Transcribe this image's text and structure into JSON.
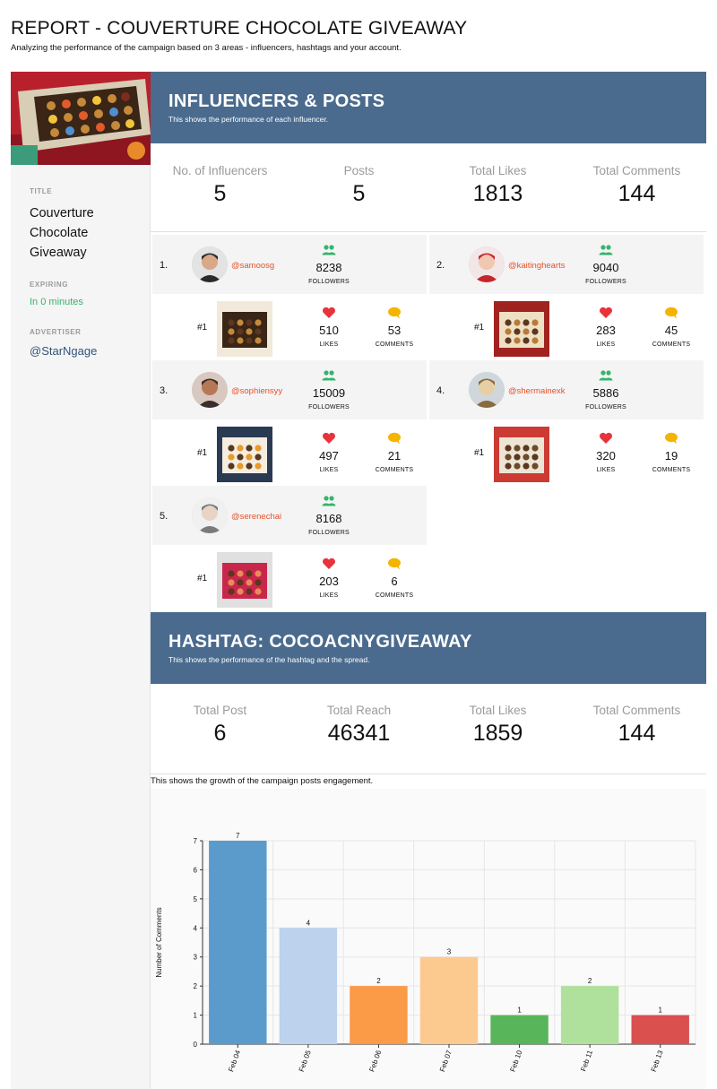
{
  "report": {
    "title": "REPORT - COUVERTURE CHOCOLATE GIVEAWAY",
    "subtitle": "Analyzing the performance of the campaign based on 3 areas - influencers, hashtags and your account."
  },
  "sidebar": {
    "title_label": "TITLE",
    "title_value": "Couverture Chocolate Giveaway",
    "expiring_label": "EXPIRING",
    "expiring_value": "In 0 minutes",
    "advertiser_label": "ADVERTISER",
    "advertiser_value": "@StarNgage"
  },
  "influencers_section": {
    "title": "INFLUENCERS & POSTS",
    "subtitle": "This shows the performance of each influencer.",
    "stats": [
      {
        "label": "No. of Influencers",
        "value": "5"
      },
      {
        "label": "Posts",
        "value": "5"
      },
      {
        "label": "Total Likes",
        "value": "1813"
      },
      {
        "label": "Total Comments",
        "value": "144"
      }
    ],
    "metric_labels": {
      "followers": "FOLLOWERS",
      "likes": "LIKES",
      "comments": "COMMENTS"
    },
    "influencers": [
      {
        "rank": "1.",
        "handle": "@samoosg",
        "followers": "8238",
        "post_rank": "#1",
        "likes": "510",
        "comments": "53"
      },
      {
        "rank": "2.",
        "handle": "@kaitinghearts",
        "followers": "9040",
        "post_rank": "#1",
        "likes": "283",
        "comments": "45"
      },
      {
        "rank": "3.",
        "handle": "@sophiensyy",
        "followers": "15009",
        "post_rank": "#1",
        "likes": "497",
        "comments": "21"
      },
      {
        "rank": "4.",
        "handle": "@shermainexk",
        "followers": "5886",
        "post_rank": "#1",
        "likes": "320",
        "comments": "19"
      },
      {
        "rank": "5.",
        "handle": "@serenechai",
        "followers": "8168",
        "post_rank": "#1",
        "likes": "203",
        "comments": "6"
      }
    ]
  },
  "hashtag_section": {
    "title": "HASHTAG: COCOACNYGIVEAWAY",
    "subtitle": "This shows the performance of the hashtag and the spread.",
    "stats": [
      {
        "label": "Total Post",
        "value": "6"
      },
      {
        "label": "Total Reach",
        "value": "46341"
      },
      {
        "label": "Total Likes",
        "value": "1859"
      },
      {
        "label": "Total Comments",
        "value": "144"
      }
    ],
    "chart_caption": "This shows the growth of the campaign posts engagement."
  },
  "colors": {
    "banner": "#4a6b8e",
    "handle": "#e8502a",
    "followers_icon": "#35b46b",
    "likes_icon": "#e8333b",
    "comments_icon": "#f5b400"
  },
  "icons": {
    "followers": "users-icon",
    "likes": "heart-icon",
    "comments": "speech-bubble-icon"
  },
  "chart_data": {
    "type": "bar",
    "categories": [
      "Feb 04",
      "Feb 05",
      "Feb 06",
      "Feb 07",
      "Feb 10",
      "Feb 11",
      "Feb 13"
    ],
    "values": [
      7,
      4,
      2,
      3,
      1,
      2,
      1
    ],
    "data_labels": [
      "7",
      "4",
      "2",
      "3",
      "1",
      "2",
      "1"
    ],
    "colors": [
      "#5b9bcc",
      "#bcd2ed",
      "#fb9a47",
      "#fcc98f",
      "#58b55a",
      "#afe19c",
      "#d9504f"
    ],
    "title": "",
    "xlabel": "",
    "ylabel": "Number of Comments",
    "ylim": [
      0,
      7
    ],
    "yticks": [
      0,
      1,
      2,
      3,
      4,
      5,
      6,
      7
    ],
    "grid": true
  }
}
